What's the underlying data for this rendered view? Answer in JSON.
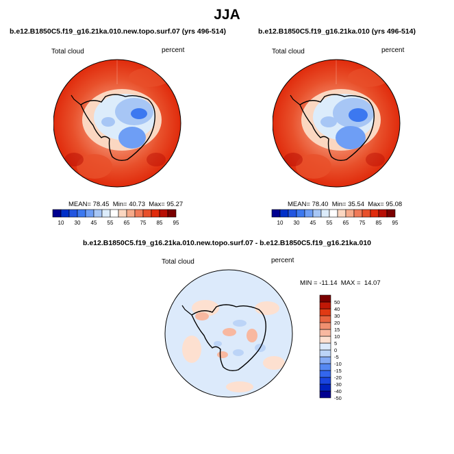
{
  "page_title": "JJA",
  "chart_data": [
    {
      "type": "heatmap",
      "projection": "south-polar-stereographic",
      "title": "b.e12.B1850C5.f19_g16.21ka.010.new.topo.surf.07 (yrs 496-514)",
      "left_label": "Total cloud",
      "right_label": "percent",
      "stats": {
        "mean_label": "MEAN=",
        "mean": "78.45",
        "min_label": "Min=",
        "min": "40.73",
        "max_label": "Max=",
        "max": "95.27"
      },
      "colorbar": {
        "orientation": "horizontal",
        "colors": [
          "#000090",
          "#0030c8",
          "#2255e0",
          "#3c78f0",
          "#6e9ef5",
          "#a7c6f5",
          "#dcecfb",
          "#ffffff",
          "#fbd7c1",
          "#f6aa8a",
          "#f07a58",
          "#e8502b",
          "#e02b0c",
          "#b80e04",
          "#7a0000"
        ],
        "tick_labels": [
          "10",
          "30",
          "45",
          "55",
          "65",
          "75",
          "85",
          "95"
        ]
      }
    },
    {
      "type": "heatmap",
      "projection": "south-polar-stereographic",
      "title": "b.e12.B1850C5.f19_g16.21ka.010 (yrs 496-514)",
      "left_label": "Total cloud",
      "right_label": "percent",
      "stats": {
        "mean_label": "MEAN=",
        "mean": "78.40",
        "min_label": "Min=",
        "min": "35.54",
        "max_label": "Max=",
        "max": "95.08"
      },
      "colorbar": {
        "orientation": "horizontal",
        "colors": [
          "#000090",
          "#0030c8",
          "#2255e0",
          "#3c78f0",
          "#6e9ef5",
          "#a7c6f5",
          "#dcecfb",
          "#ffffff",
          "#fbd7c1",
          "#f6aa8a",
          "#f07a58",
          "#e8502b",
          "#e02b0c",
          "#b80e04",
          "#7a0000"
        ],
        "tick_labels": [
          "10",
          "30",
          "45",
          "55",
          "65",
          "75",
          "85",
          "95"
        ]
      }
    },
    {
      "type": "heatmap",
      "projection": "south-polar-stereographic",
      "title": "b.e12.B1850C5.f19_g16.21ka.010.new.topo.surf.07 - b.e12.B1850C5.f19_g16.21ka.010",
      "left_label": "Total cloud",
      "right_label": "percent",
      "stats": {
        "min_label": "MIN =",
        "min": "-11.14",
        "max_label": "MAX =",
        "max": "14.07"
      },
      "colorbar": {
        "orientation": "vertical",
        "colors": [
          "#000090",
          "#0022c0",
          "#1a45e0",
          "#3366ee",
          "#5588f2",
          "#84aaf4",
          "#bcd4f7",
          "#dceafb",
          "#fde0d0",
          "#f8b8a0",
          "#f09070",
          "#e86440",
          "#e03a14",
          "#c01806",
          "#7a0000"
        ],
        "tick_labels": [
          "50",
          "40",
          "30",
          "20",
          "15",
          "10",
          "5",
          "0",
          "-5",
          "-10",
          "-15",
          "-20",
          "-30",
          "-40",
          "-50"
        ]
      }
    }
  ]
}
